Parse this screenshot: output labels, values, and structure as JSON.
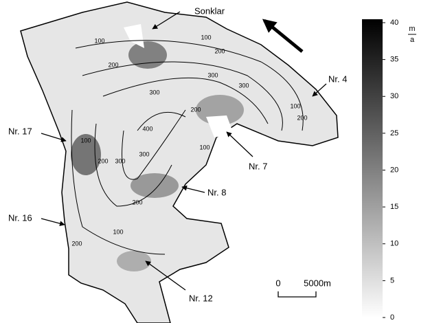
{
  "labels": [
    "Sonklar",
    "Nr. 4",
    "Nr. 17",
    "Nr. 7",
    "Nr. 8",
    "Nr. 16",
    "Nr. 12"
  ],
  "contour_labels": [
    "100",
    "200",
    "300",
    "100",
    "200",
    "300",
    "300",
    "400",
    "300",
    "200",
    "100",
    "200",
    "100",
    "100",
    "200",
    "300",
    "200",
    "100",
    "200"
  ],
  "scale_bar": {
    "start": "0",
    "end": "5000m"
  },
  "colorbar": {
    "range": [
      0,
      40
    ],
    "ticks": [
      0,
      5,
      10,
      15,
      20,
      25,
      30,
      35,
      40
    ],
    "unit_numerator": "m",
    "unit_denominator": "a",
    "colors": [
      "#ffffff",
      "#000000"
    ]
  }
}
